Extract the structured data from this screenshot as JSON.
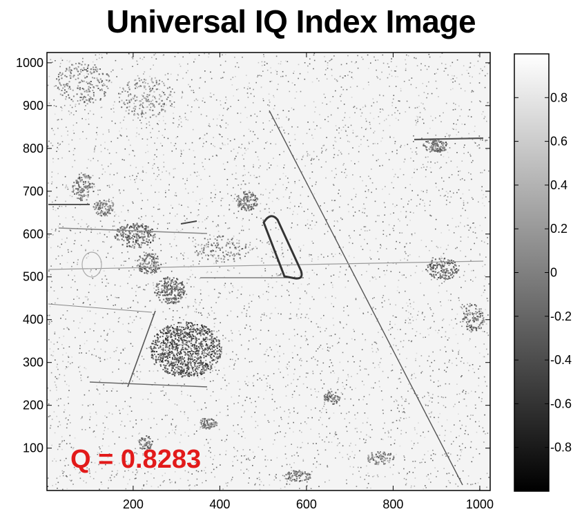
{
  "chart_data": {
    "type": "heatmap",
    "title": "Universal IQ Index Image",
    "xlabel": "",
    "ylabel": "",
    "x_range": [
      1,
      1024
    ],
    "y_range": [
      1,
      1024
    ],
    "x_ticks": [
      200,
      400,
      600,
      800,
      1000
    ],
    "y_ticks": [
      100,
      200,
      300,
      400,
      500,
      600,
      700,
      800,
      900,
      1000
    ],
    "y_axis_direction": "normal",
    "colormap": "gray",
    "color_range": [
      -1,
      1
    ],
    "colorbar_ticks": [
      0.8,
      0.6,
      0.4,
      0.2,
      0,
      -0.2,
      -0.4,
      -0.6,
      -0.8
    ],
    "colorbar_tick_labels": [
      "0.8",
      "0.6",
      "0.4",
      "0.2",
      "0",
      "-0.2",
      "-0.4",
      "-0.6",
      "-0.8"
    ],
    "colorbar_position": "right",
    "annotation": {
      "text": "Q = 0.8283",
      "color": "#e21a1a"
    }
  }
}
